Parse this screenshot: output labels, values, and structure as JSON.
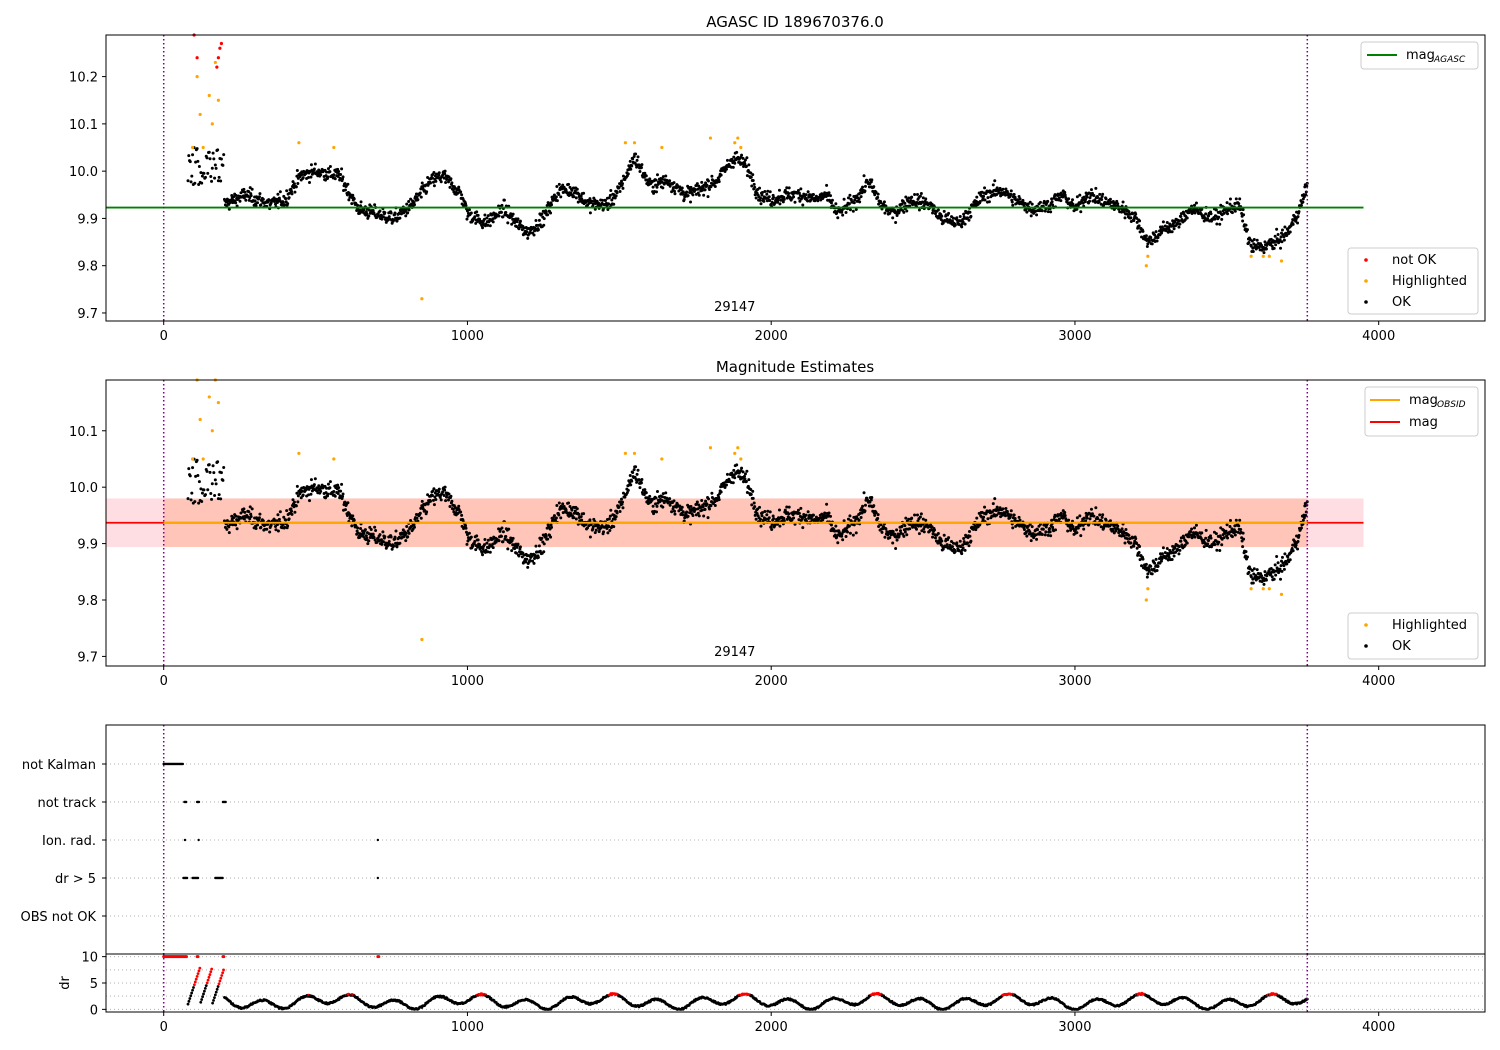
{
  "figure": {
    "background": "#ffffff"
  },
  "colors": {
    "ok": "#000000",
    "highlighted": "#ffa500",
    "not_ok": "#ff0000",
    "agasc_line": "#008000",
    "obsid_line": "#ffa500",
    "mag_line": "#ff0000",
    "band": "#ffb6c1",
    "band_inner": "#ffa07a",
    "vline": "#800080",
    "grid": "#b0b0b0"
  },
  "chart_data": [
    {
      "type": "scatter",
      "title": "AGASC ID 189670376.0",
      "xlim": [
        -190,
        4350
      ],
      "ylim": [
        9.683,
        10.288
      ],
      "x_ticks": [
        0,
        1000,
        2000,
        3000,
        4000
      ],
      "x_tick_labels": [
        "0",
        "1000",
        "2000",
        "3000",
        "4000"
      ],
      "y_ticks": [
        9.7,
        9.8,
        9.9,
        10.0,
        10.1,
        10.2
      ],
      "y_tick_labels": [
        "9.7",
        "9.8",
        "9.9",
        "10.0",
        "10.1",
        "10.2"
      ],
      "obsid_boundaries": [
        0,
        3765
      ],
      "obsid_label": {
        "x": 1880,
        "text": "29147"
      },
      "hlines": [
        {
          "name": "mag_AGASC",
          "y": 9.923,
          "x": [
            -190,
            3950
          ],
          "color": "#008000"
        }
      ],
      "legend_lines": [
        {
          "label": "mag",
          "sub": "AGASC",
          "color": "#008000"
        }
      ],
      "legend_points": [
        {
          "label": "not OK",
          "color": "#ff0000"
        },
        {
          "label": "Highlighted",
          "color": "#ffa500"
        },
        {
          "label": "OK",
          "color": "#000000"
        }
      ],
      "outliers": [
        {
          "x": 850,
          "y": 9.73
        }
      ],
      "series_knots": {
        "x": [
          200,
          270,
          350,
          400,
          450,
          500,
          580,
          640,
          700,
          760,
          820,
          880,
          920,
          980,
          1000,
          1060,
          1120,
          1160,
          1200,
          1250,
          1300,
          1350,
          1400,
          1460,
          1500,
          1550,
          1600,
          1660,
          1720,
          1760,
          1820,
          1880,
          1920,
          1960,
          2000,
          2050,
          2100,
          2150,
          2180,
          2220,
          2280,
          2320,
          2360,
          2400,
          2460,
          2520,
          2560,
          2620,
          2660,
          2700,
          2760,
          2800,
          2860,
          2920,
          2960,
          3000,
          3040,
          3080,
          3120,
          3160,
          3200,
          3240,
          3300,
          3340,
          3380,
          3420,
          3460,
          3500,
          3540,
          3580,
          3620,
          3660,
          3700,
          3740,
          3765
        ],
        "y": [
          9.93,
          9.95,
          9.93,
          9.94,
          9.99,
          10.0,
          9.99,
          9.92,
          9.91,
          9.9,
          9.93,
          9.98,
          9.99,
          9.95,
          9.91,
          9.89,
          9.92,
          9.89,
          9.87,
          9.9,
          9.96,
          9.96,
          9.93,
          9.93,
          9.96,
          10.03,
          9.97,
          9.98,
          9.95,
          9.96,
          9.98,
          10.03,
          10.01,
          9.95,
          9.94,
          9.95,
          9.95,
          9.94,
          9.95,
          9.91,
          9.94,
          9.98,
          9.93,
          9.91,
          9.94,
          9.93,
          9.9,
          9.89,
          9.92,
          9.95,
          9.96,
          9.94,
          9.92,
          9.93,
          9.95,
          9.92,
          9.95,
          9.94,
          9.93,
          9.92,
          9.9,
          9.85,
          9.88,
          9.89,
          9.92,
          9.91,
          9.9,
          9.92,
          9.93,
          9.84,
          9.84,
          9.85,
          9.87,
          9.92,
          9.97
        ]
      },
      "highlighted_points": [
        [
          120,
          10.12
        ],
        [
          110,
          10.2
        ],
        [
          130,
          10.05
        ],
        [
          150,
          10.16
        ],
        [
          160,
          10.1
        ],
        [
          170,
          10.23
        ],
        [
          180,
          10.15
        ],
        [
          95,
          10.05
        ],
        [
          445,
          10.06
        ],
        [
          560,
          10.05
        ],
        [
          1520,
          10.06
        ],
        [
          1550,
          10.06
        ],
        [
          1640,
          10.05
        ],
        [
          1800,
          10.07
        ],
        [
          1880,
          10.06
        ],
        [
          1890,
          10.07
        ],
        [
          1900,
          10.05
        ],
        [
          3235,
          9.8
        ],
        [
          3240,
          9.82
        ],
        [
          3580,
          9.82
        ],
        [
          3620,
          9.82
        ],
        [
          3640,
          9.82
        ],
        [
          3680,
          9.81
        ]
      ],
      "not_ok_points": [
        [
          100,
          10.29
        ],
        [
          110,
          10.24
        ],
        [
          180,
          10.24
        ],
        [
          185,
          10.26
        ],
        [
          190,
          10.27
        ],
        [
          175,
          10.22
        ]
      ]
    },
    {
      "type": "scatter",
      "title": "Magnitude Estimates",
      "xlim": [
        -190,
        4350
      ],
      "ylim": [
        9.683,
        10.19
      ],
      "x_ticks": [
        0,
        1000,
        2000,
        3000,
        4000
      ],
      "x_tick_labels": [
        "0",
        "1000",
        "2000",
        "3000",
        "4000"
      ],
      "y_ticks": [
        9.7,
        9.8,
        9.9,
        10.0,
        10.1
      ],
      "y_tick_labels": [
        "9.7",
        "9.8",
        "9.9",
        "10.0",
        "10.1"
      ],
      "obsid_boundaries": [
        0,
        3765
      ],
      "obsid_label": {
        "x": 1880,
        "text": "29147"
      },
      "band": {
        "x": [
          -190,
          3950
        ],
        "y": [
          9.894,
          9.98
        ]
      },
      "band_inner": {
        "x": [
          0,
          3765
        ],
        "y": [
          9.894,
          9.98
        ]
      },
      "hlines": [
        {
          "name": "mag",
          "y": 9.937,
          "x": [
            -190,
            3950
          ],
          "color": "#ff0000"
        },
        {
          "name": "mag_OBSID",
          "y": 9.937,
          "x": [
            0,
            3765
          ],
          "color": "#ffa500"
        }
      ],
      "legend_lines": [
        {
          "label": "mag",
          "sub": "OBSID",
          "color": "#ffa500"
        },
        {
          "label": "mag",
          "sub": "",
          "color": "#ff0000"
        }
      ],
      "legend_points": [
        {
          "label": "Highlighted",
          "color": "#ffa500"
        },
        {
          "label": "OK",
          "color": "#000000"
        }
      ],
      "outliers": [
        {
          "x": 850,
          "y": 9.73
        }
      ]
    },
    {
      "type": "scatter",
      "title": "",
      "xlim": [
        -190,
        4350
      ],
      "categories": [
        "not Kalman",
        "not track",
        "Ion. rad.",
        "dr > 5",
        "OBS not OK"
      ],
      "flags": {
        "not Kalman": [
          [
            0,
            65
          ]
        ],
        "not track": [
          [
            68,
            75
          ],
          [
            110,
            118
          ],
          [
            195,
            205
          ]
        ],
        "Ion. rad.": [
          [
            70,
            72
          ],
          [
            115,
            117
          ],
          [
            705,
            707
          ]
        ],
        "dr > 5": [
          [
            65,
            78
          ],
          [
            95,
            115
          ],
          [
            170,
            195
          ],
          [
            705,
            707
          ]
        ],
        "OBS not OK": []
      },
      "obsid_boundaries": [
        0,
        3765
      ]
    },
    {
      "type": "scatter",
      "title": "",
      "ylabel": "dr",
      "xlim": [
        -190,
        4350
      ],
      "ylim": [
        -0.5,
        10.5
      ],
      "x_ticks": [
        0,
        1000,
        2000,
        3000,
        4000
      ],
      "x_tick_labels": [
        "0",
        "1000",
        "2000",
        "3000",
        "4000"
      ],
      "y_ticks": [
        0,
        5,
        10
      ],
      "y_tick_labels": [
        "0",
        "5",
        "10"
      ],
      "obsid_boundaries": [
        0,
        3765
      ],
      "clipped_red_x": [
        [
          0,
          75
        ],
        [
          110,
          115
        ],
        [
          195,
          200
        ],
        [
          705,
          708
        ]
      ]
    }
  ]
}
